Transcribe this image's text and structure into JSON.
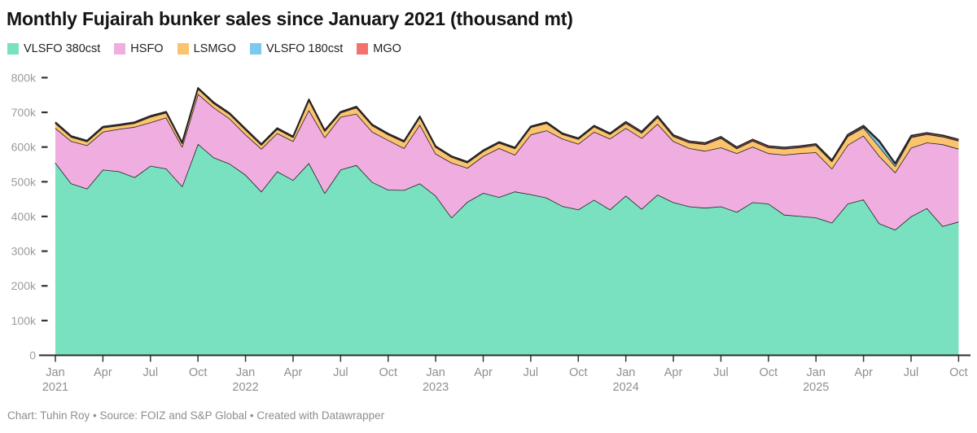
{
  "title": "Monthly Fujairah bunker sales since January 2021 (thousand mt)",
  "footer": "Chart: Tuhin Roy • Source: FOIZ and S&P Global • Created with Datawrapper",
  "legend": [
    "VLSFO 380cst",
    "HSFO",
    "LSMGO",
    "VLSFO 180cst",
    "MGO"
  ],
  "chart_data": {
    "type": "area",
    "stacked": true,
    "unit": "thousand mt",
    "grid": false,
    "legend_position": "top-left",
    "ylim": [
      0,
      800
    ],
    "y_ticks": [
      "0",
      "100k",
      "200k",
      "300k",
      "400k",
      "500k",
      "600k",
      "700k",
      "800k"
    ],
    "x_tick_every": 3,
    "months": [
      "Jan 2021",
      "Feb 2021",
      "Mar 2021",
      "Apr 2021",
      "May 2021",
      "Jun 2021",
      "Jul 2021",
      "Aug 2021",
      "Sep 2021",
      "Oct 2021",
      "Nov 2021",
      "Dec 2021",
      "Jan 2022",
      "Feb 2022",
      "Mar 2022",
      "Apr 2022",
      "May 2022",
      "Jun 2022",
      "Jul 2022",
      "Aug 2022",
      "Sep 2022",
      "Oct 2022",
      "Nov 2022",
      "Dec 2022",
      "Jan 2023",
      "Feb 2023",
      "Mar 2023",
      "Apr 2023",
      "May 2023",
      "Jun 2023",
      "Jul 2023",
      "Aug 2023",
      "Sep 2023",
      "Oct 2023",
      "Nov 2023",
      "Dec 2023",
      "Jan 2024",
      "Feb 2024",
      "Mar 2024",
      "Apr 2024",
      "May 2024",
      "Jun 2024",
      "Jul 2024",
      "Aug 2024",
      "Sep 2024",
      "Oct 2024",
      "Nov 2024",
      "Dec 2024",
      "Jan 2025",
      "Feb 2025",
      "Mar 2025",
      "Apr 2025",
      "May 2025",
      "Jun 2025",
      "Jul 2025",
      "Aug 2025",
      "Sep 2025",
      "Oct 2025"
    ],
    "series": [
      {
        "name": "VLSFO 380cst",
        "color": "#7ae1c0",
        "values": [
          555,
          495,
          480,
          535,
          530,
          513,
          546,
          538,
          487,
          609,
          570,
          552,
          520,
          472,
          530,
          505,
          554,
          468,
          535,
          548,
          499,
          477,
          476,
          495,
          460,
          397,
          442,
          468,
          456,
          472,
          464,
          454,
          430,
          420,
          448,
          420,
          460,
          422,
          463,
          441,
          429,
          425,
          429,
          413,
          441,
          437,
          405,
          401,
          397,
          382,
          437,
          449,
          380,
          362,
          400,
          424,
          372,
          385
        ]
      },
      {
        "name": "HSFO",
        "color": "#f0aee0",
        "values": [
          100,
          122,
          125,
          109,
          122,
          145,
          125,
          147,
          114,
          144,
          144,
          130,
          116,
          123,
          110,
          112,
          153,
          160,
          152,
          148,
          145,
          143,
          121,
          170,
          121,
          158,
          98,
          106,
          141,
          106,
          172,
          194,
          194,
          189,
          196,
          204,
          195,
          204,
          204,
          176,
          168,
          164,
          170,
          169,
          160,
          145,
          173,
          181,
          188,
          156,
          169,
          184,
          194,
          165,
          198,
          189,
          236,
          210
        ]
      },
      {
        "name": "LSMGO",
        "color": "#fbc36e",
        "values": [
          14,
          12,
          11,
          12,
          10,
          11,
          16,
          14,
          10,
          15,
          12,
          13,
          14,
          11,
          12,
          11,
          28,
          18,
          12,
          18,
          18,
          16,
          18,
          21,
          19,
          16,
          15,
          14,
          15,
          18,
          21,
          21,
          13,
          14,
          15,
          13,
          14,
          15,
          19,
          14,
          16,
          19,
          27,
          14,
          17,
          17,
          17,
          17,
          20,
          21,
          25,
          23,
          27,
          18,
          30,
          24,
          22,
          23
        ]
      },
      {
        "name": "VLSFO 180cst",
        "color": "#7cc9f0",
        "values": [
          1,
          1,
          1,
          1,
          1,
          1,
          1,
          1,
          1,
          1,
          1,
          1,
          1,
          1,
          1,
          1,
          1,
          1,
          1,
          1,
          1,
          1,
          1,
          1,
          1,
          1,
          1,
          1,
          1,
          1,
          1,
          1,
          1,
          1,
          1,
          1,
          1,
          1,
          1,
          1,
          1,
          1,
          1,
          1,
          1,
          1,
          1,
          1,
          1,
          1,
          2,
          3,
          14,
          6,
          2,
          1,
          1,
          1
        ]
      },
      {
        "name": "MGO",
        "color": "#f4726e",
        "values": [
          2,
          2,
          2,
          2,
          2,
          2,
          2,
          2,
          2,
          2,
          2,
          2,
          2,
          2,
          2,
          2,
          2,
          2,
          2,
          2,
          2,
          2,
          2,
          2,
          2,
          2,
          2,
          2,
          2,
          2,
          2,
          2,
          2,
          2,
          2,
          2,
          3,
          3,
          3,
          3,
          3,
          3,
          3,
          3,
          3,
          3,
          3,
          3,
          3,
          3,
          3,
          3,
          3,
          3,
          3,
          3,
          3,
          3
        ]
      }
    ]
  }
}
